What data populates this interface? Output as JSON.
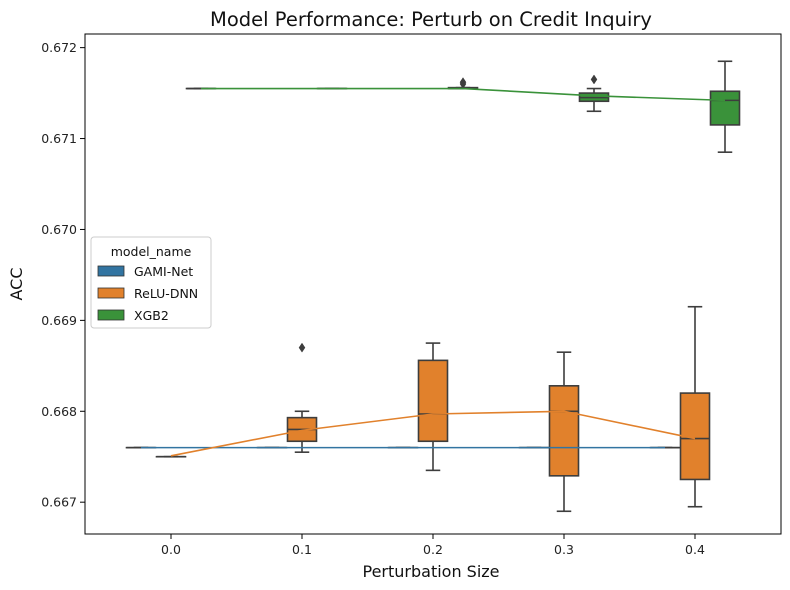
{
  "chart_data": {
    "type": "box",
    "title": "Model Performance: Perturb on Credit Inquiry",
    "xlabel": "Perturbation Size",
    "ylabel": "ACC",
    "categories": [
      "0.0",
      "0.1",
      "0.2",
      "0.3",
      "0.4"
    ],
    "ylim": [
      0.66665,
      0.67215
    ],
    "yticks": [
      0.667,
      0.668,
      0.669,
      0.67,
      0.671,
      0.672
    ],
    "ytick_labels": [
      "0.667",
      "0.668",
      "0.669",
      "0.670",
      "0.671",
      "0.672"
    ],
    "grid": false,
    "legend": {
      "title": "model_name",
      "placement": "center-left",
      "entries": [
        "GAMI-Net",
        "ReLU-DNN",
        "XGB2"
      ]
    },
    "series": [
      {
        "name": "GAMI-Net",
        "color": "#3274a1",
        "boxes": [
          {
            "whislo": 0.6676,
            "q1": 0.6676,
            "med": 0.6676,
            "q3": 0.6676,
            "whishi": 0.6676,
            "fliers": []
          },
          {
            "whislo": 0.6676,
            "q1": 0.6676,
            "med": 0.6676,
            "q3": 0.6676,
            "whishi": 0.6676,
            "fliers": []
          },
          {
            "whislo": 0.6676,
            "q1": 0.6676,
            "med": 0.6676,
            "q3": 0.6676,
            "whishi": 0.6676,
            "fliers": []
          },
          {
            "whislo": 0.6676,
            "q1": 0.6676,
            "med": 0.6676,
            "q3": 0.6676,
            "whishi": 0.6676,
            "fliers": []
          },
          {
            "whislo": 0.6676,
            "q1": 0.6676,
            "med": 0.6676,
            "q3": 0.6676,
            "whishi": 0.6676,
            "fliers": []
          }
        ],
        "mean_line": [
          0.6676,
          0.6676,
          0.6676,
          0.6676,
          0.6676
        ]
      },
      {
        "name": "ReLU-DNN",
        "color": "#e1812c",
        "boxes": [
          {
            "whislo": 0.6675,
            "q1": 0.6675,
            "med": 0.6675,
            "q3": 0.6675,
            "whishi": 0.6675,
            "fliers": []
          },
          {
            "whislo": 0.66755,
            "q1": 0.66767,
            "med": 0.6678,
            "q3": 0.66793,
            "whishi": 0.668,
            "fliers": [
              0.6687
            ]
          },
          {
            "whislo": 0.66735,
            "q1": 0.66767,
            "med": 0.66797,
            "q3": 0.66856,
            "whishi": 0.66875,
            "fliers": []
          },
          {
            "whislo": 0.6669,
            "q1": 0.66729,
            "med": 0.668,
            "q3": 0.66828,
            "whishi": 0.66865,
            "fliers": []
          },
          {
            "whislo": 0.66695,
            "q1": 0.66725,
            "med": 0.6677,
            "q3": 0.6682,
            "whishi": 0.66915,
            "fliers": []
          }
        ],
        "mean_line": [
          0.66751,
          0.66779,
          0.66797,
          0.668,
          0.6677
        ]
      },
      {
        "name": "XGB2",
        "color": "#3a923a",
        "boxes": [
          {
            "whislo": 0.67155,
            "q1": 0.67155,
            "med": 0.67155,
            "q3": 0.67155,
            "whishi": 0.67155,
            "fliers": []
          },
          {
            "whislo": 0.67155,
            "q1": 0.67155,
            "med": 0.67155,
            "q3": 0.67155,
            "whishi": 0.67155,
            "fliers": []
          },
          {
            "whislo": 0.67155,
            "q1": 0.67155,
            "med": 0.67155,
            "q3": 0.67156,
            "whishi": 0.67156,
            "fliers": [
              0.6716,
              0.67162
            ]
          },
          {
            "whislo": 0.6713,
            "q1": 0.67141,
            "med": 0.67145,
            "q3": 0.6715,
            "whishi": 0.67155,
            "fliers": [
              0.67165
            ]
          },
          {
            "whislo": 0.67085,
            "q1": 0.67115,
            "med": 0.67142,
            "q3": 0.67152,
            "whishi": 0.67185,
            "fliers": []
          }
        ],
        "mean_line": [
          0.67155,
          0.67155,
          0.67155,
          0.67147,
          0.67142
        ]
      }
    ]
  }
}
